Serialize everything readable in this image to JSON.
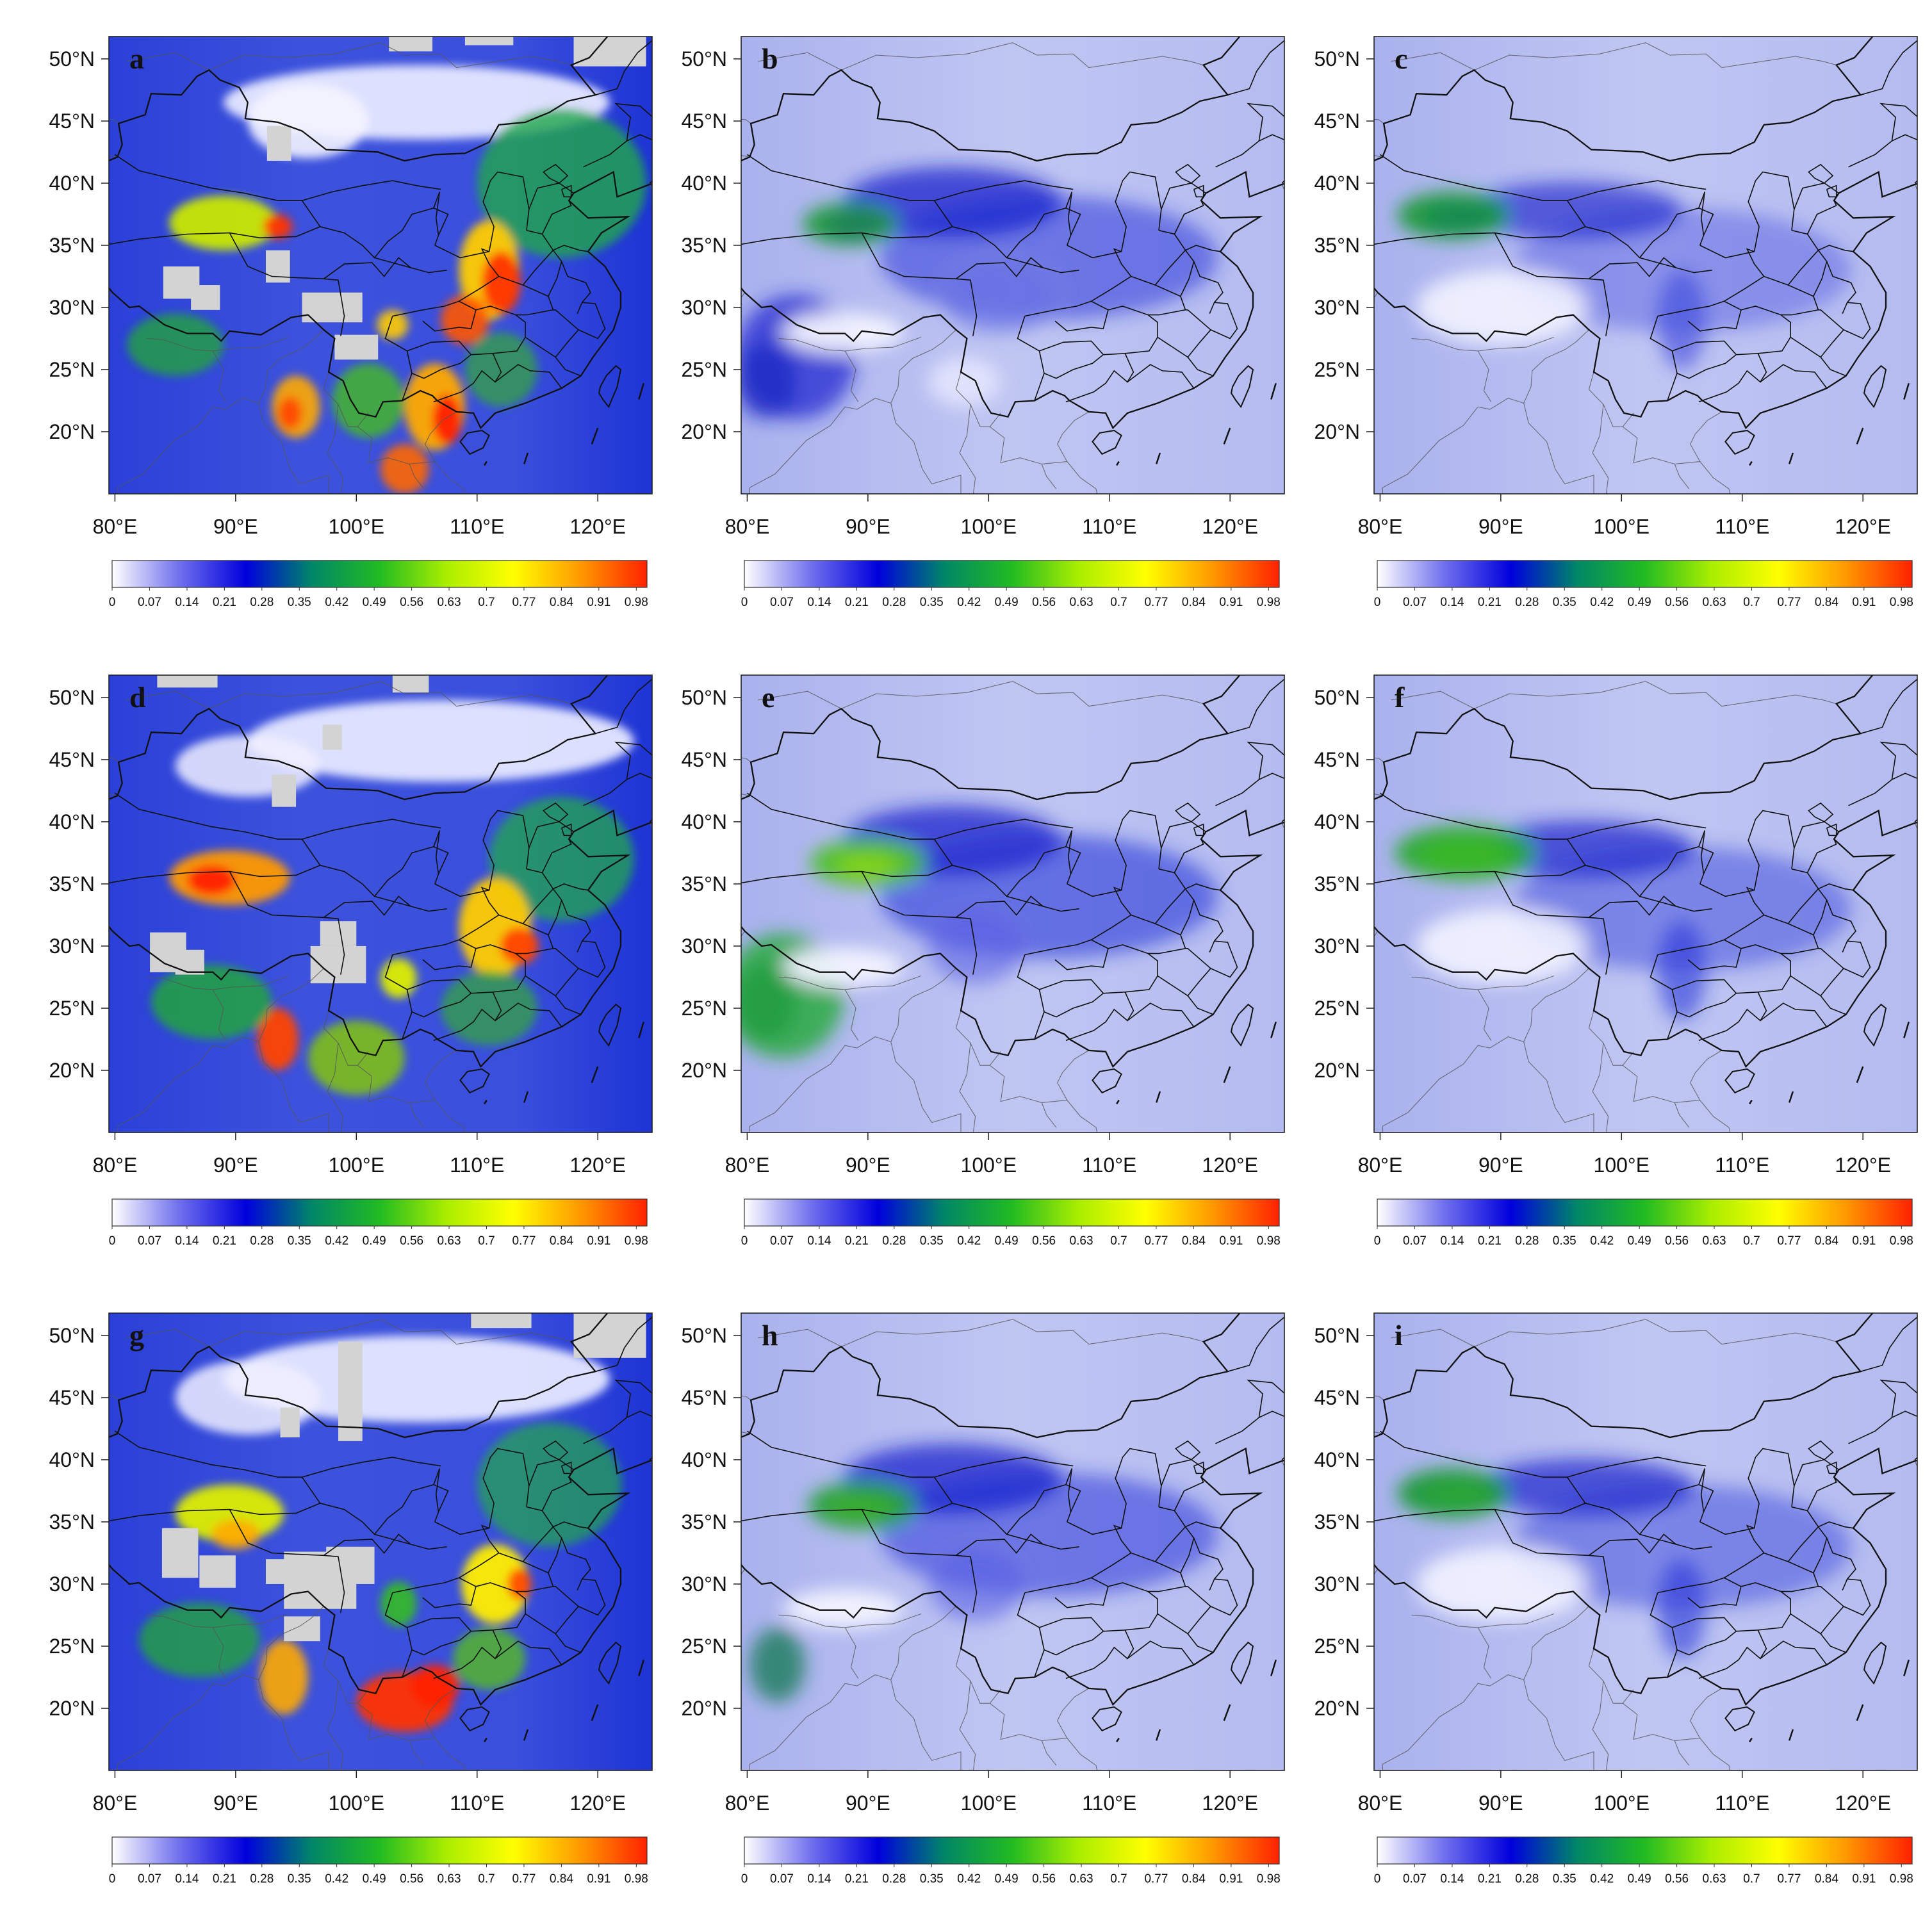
{
  "figure": {
    "panels": [
      {
        "id": "a",
        "type": "observation"
      },
      {
        "id": "b",
        "type": "model"
      },
      {
        "id": "c",
        "type": "model2"
      },
      {
        "id": "d",
        "type": "observation"
      },
      {
        "id": "e",
        "type": "model"
      },
      {
        "id": "f",
        "type": "model2"
      },
      {
        "id": "g",
        "type": "observation"
      },
      {
        "id": "h",
        "type": "model"
      },
      {
        "id": "i",
        "type": "model2"
      }
    ],
    "lat_ticks": [
      "50°N",
      "45°N",
      "40°N",
      "35°N",
      "30°N",
      "25°N",
      "20°N"
    ],
    "lat_values": [
      50,
      45,
      40,
      35,
      30,
      25,
      20
    ],
    "lon_ticks": [
      "80°E",
      "90°E",
      "100°E",
      "110°E",
      "120°E"
    ],
    "lon_values": [
      80,
      90,
      100,
      110,
      120
    ],
    "lon_range": [
      79.5,
      124.5
    ],
    "lat_range": [
      15,
      51.8
    ],
    "colorbar": {
      "ticks": [
        "0",
        "0.07",
        "0.14",
        "0.21",
        "0.28",
        "0.35",
        "0.42",
        "0.49",
        "0.56",
        "0.63",
        "0.7",
        "0.77",
        "0.84",
        "0.91",
        "0.98"
      ],
      "values": [
        0,
        0.07,
        0.14,
        0.21,
        0.28,
        0.35,
        0.42,
        0.49,
        0.56,
        0.63,
        0.7,
        0.77,
        0.84,
        0.91,
        0.98
      ],
      "range": [
        0,
        1.0
      ],
      "stops": [
        "#ffffff",
        "#7070ee",
        "#0000dd",
        "#008866",
        "#22bb22",
        "#aaee00",
        "#ffff00",
        "#ff9900",
        "#ff2200"
      ]
    },
    "missing_color": "#d3d3d3",
    "border_color": "#111111"
  }
}
